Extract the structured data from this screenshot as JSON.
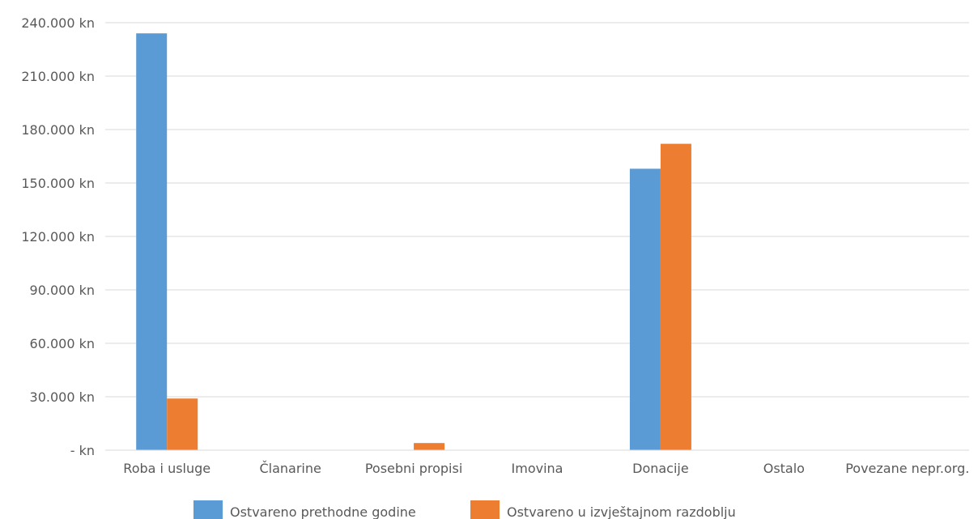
{
  "chart_data": {
    "type": "bar",
    "categories": [
      "Roba i usluge",
      "Članarine",
      "Posebni propisi",
      "Imovina",
      "Donacije",
      "Ostalo",
      "Povezane nepr.org."
    ],
    "series": [
      {
        "name": "Ostvareno prethodne godine",
        "color": "#5b9bd5",
        "values": [
          234000,
          0,
          0,
          0,
          158000,
          0,
          0
        ]
      },
      {
        "name": "Ostvareno u izvještajnom razdoblju",
        "color": "#ed7d31",
        "values": [
          29000,
          0,
          4000,
          0,
          172000,
          0,
          0
        ]
      }
    ],
    "ylim": [
      0,
      240000
    ],
    "y_ticks": [
      0,
      30000,
      60000,
      90000,
      120000,
      150000,
      180000,
      210000,
      240000
    ],
    "y_tick_labels": [
      "- kn",
      "30.000 kn",
      "60.000 kn",
      "90.000 kn",
      "120.000 kn",
      "150.000 kn",
      "180.000 kn",
      "210.000 kn",
      "240.000 kn"
    ],
    "grid": true,
    "legend_position": "bottom"
  }
}
